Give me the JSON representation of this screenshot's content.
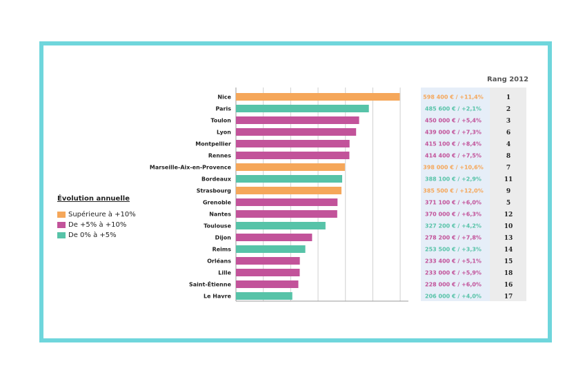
{
  "colors": {
    "orange": "#f5a75a",
    "magenta": "#c2539a",
    "teal": "#57c3a8",
    "frame": "#6fd6dc",
    "value_panel": "#e6eef8",
    "rank_panel": "#ececec"
  },
  "legend": {
    "title": "Évolution annuelle",
    "items": [
      {
        "label": "Supérieure à +10%",
        "color_key": "orange"
      },
      {
        "label": "De +5% à +10%",
        "color_key": "magenta"
      },
      {
        "label": "De 0% à +5%",
        "color_key": "teal"
      }
    ]
  },
  "rank_header": "Rang 2012",
  "chart_data": {
    "type": "bar",
    "orientation": "horizontal",
    "title": "",
    "xlabel": "",
    "ylabel": "",
    "grid": true,
    "xlim": [
      0,
      630000
    ],
    "categories": [
      "Nice",
      "Paris",
      "Toulon",
      "Lyon",
      "Montpellier",
      "Rennes",
      "Marseille-Aix-en-Provence",
      "Bordeaux",
      "Strasbourg",
      "Grenoble",
      "Nantes",
      "Toulouse",
      "Dijon",
      "Reims",
      "Orléans",
      "Lille",
      "Saint-Étienne",
      "Le Havre"
    ],
    "values": [
      598400,
      485600,
      450000,
      439000,
      415100,
      414400,
      398000,
      388100,
      385500,
      371100,
      370000,
      327200,
      278200,
      253500,
      233400,
      233000,
      228000,
      206000
    ],
    "color_groups": [
      "orange",
      "teal",
      "magenta",
      "magenta",
      "magenta",
      "magenta",
      "orange",
      "teal",
      "orange",
      "magenta",
      "magenta",
      "teal",
      "magenta",
      "teal",
      "magenta",
      "magenta",
      "magenta",
      "teal"
    ],
    "value_labels": [
      "598 400 € / +11,4%",
      "485 600 € / +2,1%",
      "450 000 € / +5,4%",
      "439 000 € / +7,3%",
      "415 100 € / +8,4%",
      "414 400 € / +7,5%",
      "398 000 € / +10,6%",
      "388 100 € / +2,9%",
      "385 500 € / +12,0%",
      "371 100 € / +6,0%",
      "370 000 € / +6,3%",
      "327 200 € / +4,2%",
      "278 200 € / +7,8%",
      "253 500 € / +3,3%",
      "233 400 € / +5,1%",
      "233 000 € / +5,9%",
      "228 000 € / +6,0%",
      "206 000 € / +4,0%"
    ],
    "ranks": [
      "1",
      "2",
      "3",
      "6",
      "4",
      "8",
      "7",
      "11",
      "9",
      "5",
      "12",
      "10",
      "13",
      "14",
      "15",
      "18",
      "16",
      "17"
    ]
  }
}
